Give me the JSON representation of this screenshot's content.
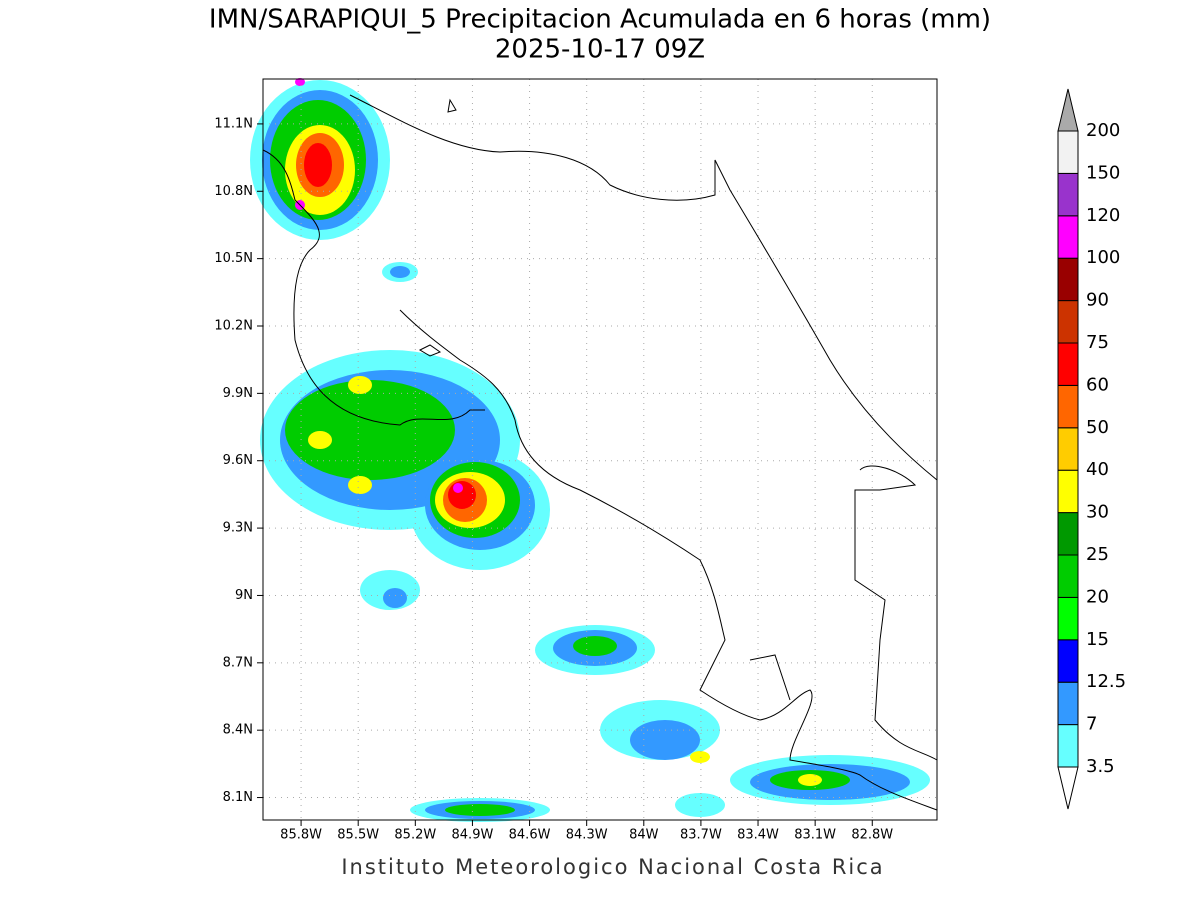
{
  "header": {
    "title": "IMN/SARAPIQUI_5 Precipitacion Acumulada en 6 horas (mm)",
    "subtitle": "2025-10-17 09Z"
  },
  "map": {
    "xlim": [
      -86.0,
      -82.46
    ],
    "ylim": [
      8.0,
      11.3
    ],
    "xticks": [
      {
        "value": -85.8,
        "label": "85.8W"
      },
      {
        "value": -85.5,
        "label": "85.5W"
      },
      {
        "value": -85.2,
        "label": "85.2W"
      },
      {
        "value": -84.9,
        "label": "84.9W"
      },
      {
        "value": -84.6,
        "label": "84.6W"
      },
      {
        "value": -84.3,
        "label": "84.3W"
      },
      {
        "value": -84,
        "label": "84W"
      },
      {
        "value": -83.7,
        "label": "83.7W"
      },
      {
        "value": -83.4,
        "label": "83.4W"
      },
      {
        "value": -83.1,
        "label": "83.1W"
      },
      {
        "value": -82.8,
        "label": "82.8W"
      }
    ],
    "yticks": [
      {
        "value": 8.1,
        "label": "8.1N"
      },
      {
        "value": 8.4,
        "label": "8.4N"
      },
      {
        "value": 8.7,
        "label": "8.7N"
      },
      {
        "value": 9,
        "label": "9N"
      },
      {
        "value": 9.3,
        "label": "9.3N"
      },
      {
        "value": 9.6,
        "label": "9.6N"
      },
      {
        "value": 9.9,
        "label": "9.9N"
      },
      {
        "value": 10.2,
        "label": "10.2N"
      },
      {
        "value": 10.5,
        "label": "10.5N"
      },
      {
        "value": 10.8,
        "label": "10.8N"
      },
      {
        "value": 11.1,
        "label": "11.1N"
      }
    ],
    "grid": true
  },
  "colorbar": {
    "levels": [
      3.5,
      7,
      12.5,
      15,
      20,
      25,
      30,
      40,
      50,
      60,
      75,
      90,
      100,
      120,
      150,
      200
    ],
    "colors": [
      "#ffffff",
      "#66ffff",
      "#3399ff",
      "#0000ff",
      "#00ff00",
      "#00cc00",
      "#009900",
      "#ffff00",
      "#ffcc00",
      "#ff6600",
      "#ff0000",
      "#cc3300",
      "#990000",
      "#ff00ff",
      "#9933cc",
      "#f2f2f2",
      "#aaaaaa"
    ]
  },
  "footer": {
    "credit": "Instituto Meteorologico Nacional Costa Rica"
  }
}
